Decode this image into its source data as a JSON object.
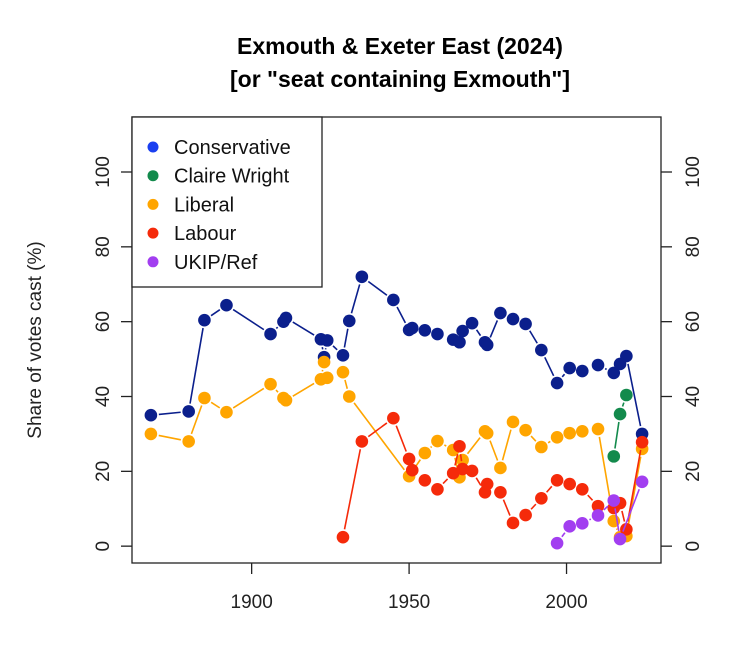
{
  "chart_data": {
    "type": "line",
    "title": [
      "Exmouth & Exeter East (2024)",
      "[or \"seat containing Exmouth\"]"
    ],
    "xlabel": "",
    "ylabel": "Share of votes cast (%)",
    "xlim": [
      1862,
      2030
    ],
    "ylim": [
      -4.5,
      114.7
    ],
    "xticks": [
      1900,
      1950,
      2000
    ],
    "xtick_labels": [
      "1900",
      "1950",
      "2000"
    ],
    "yticks": [
      0,
      20,
      40,
      60,
      80,
      100
    ],
    "ytick_labels": [
      "0",
      "20",
      "40",
      "60",
      "80",
      "100"
    ],
    "legend_placement": "top-left",
    "grid": false,
    "series": [
      {
        "name": "Conservative",
        "color": "#0b1f8c",
        "legend_color": "#1a3ff0",
        "x": [
          1868,
          1880,
          1885,
          1892,
          1906,
          1910.1,
          1910.9,
          1922,
          1923,
          1924,
          1929,
          1931,
          1935,
          1945,
          1950,
          1951,
          1955,
          1959,
          1964,
          1966,
          1967,
          1970,
          1974.1,
          1974.8,
          1979,
          1983,
          1987,
          1992,
          1997,
          2001,
          2005,
          2010,
          2015,
          2017,
          2019,
          2024
        ],
        "y": [
          35,
          36,
          60.4,
          64.4,
          56.7,
          60,
          61,
          55.3,
          50.5,
          55,
          51,
          60.2,
          72,
          65.8,
          57.8,
          58.3,
          57.7,
          56.7,
          55.2,
          54.5,
          57.5,
          59.6,
          54.5,
          53.8,
          62.3,
          60.7,
          59.4,
          52.4,
          43.6,
          47.6,
          46.8,
          48.4,
          46.3,
          48.7,
          50.8,
          30
        ]
      },
      {
        "name": "Claire Wright",
        "color": "#138a4c",
        "legend_color": "#138a4c",
        "x": [
          2015,
          2017,
          2019
        ],
        "y": [
          24,
          35.3,
          40.4
        ]
      },
      {
        "name": "Liberal",
        "color": "#ffa500",
        "legend_color": "#ffa500",
        "x": [
          1868,
          1880,
          1885,
          1892,
          1906,
          1910.1,
          1910.9,
          1922,
          1923,
          1924,
          1929,
          1931,
          1950,
          1955,
          1959,
          1964,
          1966,
          1967,
          1974.1,
          1974.8,
          1979,
          1983,
          1987,
          1992,
          1997,
          2001,
          2005,
          2010,
          2015,
          2017,
          2019,
          2024
        ],
        "y": [
          30,
          28,
          39.6,
          35.8,
          43.3,
          39.6,
          39,
          44.6,
          49.2,
          45,
          46.5,
          40,
          18.7,
          24.9,
          28.1,
          25.7,
          18.4,
          23,
          30.7,
          30.2,
          20.9,
          33.2,
          31,
          26.5,
          29.1,
          30.2,
          30.7,
          31.3,
          6.7,
          2.4,
          2.7,
          26
        ]
      },
      {
        "name": "Labour",
        "color": "#f52a0a",
        "legend_color": "#f52a0a",
        "x": [
          1929,
          1935,
          1945,
          1950,
          1951,
          1955,
          1959,
          1964,
          1966,
          1967,
          1970,
          1974.1,
          1974.8,
          1979,
          1983,
          1987,
          1992,
          1997,
          2001,
          2005,
          2010,
          2015,
          2017,
          2019,
          2024
        ],
        "y": [
          2.4,
          28,
          34.2,
          23.3,
          20.3,
          17.6,
          15.2,
          19.5,
          26.7,
          20.6,
          20.1,
          14.4,
          16.6,
          14.4,
          6.2,
          8.3,
          12.8,
          17.6,
          16.6,
          15.2,
          10.7,
          10.2,
          11.5,
          4.5,
          27.8
        ]
      },
      {
        "name": "UKIP/Ref",
        "color": "#a23ef0",
        "legend_color": "#a23ef0",
        "x": [
          1997,
          2001,
          2005,
          2010,
          2015,
          2017,
          2024
        ],
        "y": [
          0.8,
          5.3,
          6.1,
          8.2,
          12.2,
          1.9,
          17.2
        ]
      }
    ]
  }
}
